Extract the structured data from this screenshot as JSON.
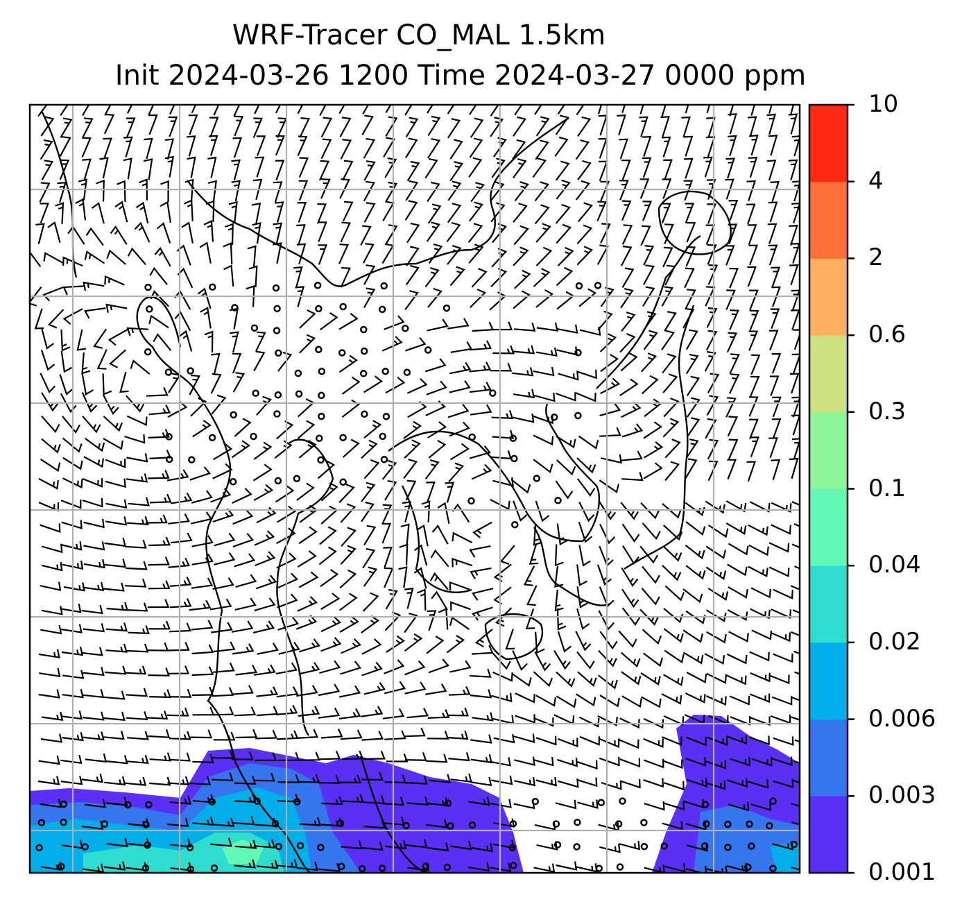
{
  "title": {
    "line1": "WRF-Tracer CO_MAL 1.5km",
    "line2": "Init 2024-03-26 1200 Time 2024-03-27 0000 ppm"
  },
  "colorbar": {
    "levels": [
      "0.001",
      "0.003",
      "0.006",
      "0.02",
      "0.04",
      "0.1",
      "0.3",
      "0.6",
      "2",
      "4",
      "10"
    ],
    "colors": [
      "#5b2ff5",
      "#3575ee",
      "#00aee9",
      "#2fdcd0",
      "#62f9b6",
      "#8ef59a",
      "#cbe080",
      "#ffaf5f",
      "#ff6f3a",
      "#ff2a14"
    ]
  },
  "map": {
    "field": "CO_MAL tracer concentration",
    "overlays": [
      "wind barbs",
      "coastlines",
      "lat/lon gridlines"
    ]
  }
}
